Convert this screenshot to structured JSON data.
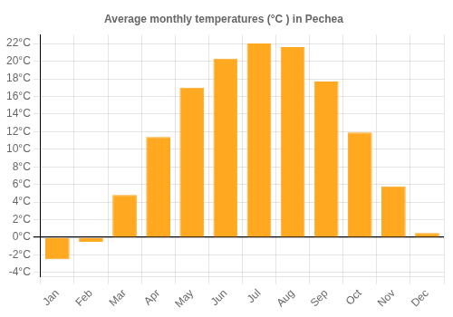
{
  "chart_data": {
    "type": "bar",
    "title": "Average monthly temperatures (°C ) in Pechea",
    "categories": [
      "Jan",
      "Feb",
      "Mar",
      "Apr",
      "May",
      "Jun",
      "Jul",
      "Aug",
      "Sep",
      "Oct",
      "Nov",
      "Dec"
    ],
    "values": [
      -2.5,
      -0.5,
      4.8,
      11.4,
      17.0,
      20.3,
      22.0,
      21.6,
      17.7,
      11.9,
      5.8,
      0.5
    ],
    "color": "#FFA820",
    "ylim": [
      -4.5,
      23
    ],
    "yticks": [
      {
        "value": -4,
        "label": "-4°C"
      },
      {
        "value": -2,
        "label": "-2°C"
      },
      {
        "value": 0,
        "label": "0°C"
      },
      {
        "value": 2,
        "label": "2°C"
      },
      {
        "value": 4,
        "label": "4°C"
      },
      {
        "value": 6,
        "label": "6°C"
      },
      {
        "value": 8,
        "label": "8°C"
      },
      {
        "value": 10,
        "label": "10°C"
      },
      {
        "value": 12,
        "label": "12°C"
      },
      {
        "value": 14,
        "label": "14°C"
      },
      {
        "value": 16,
        "label": "16°C"
      },
      {
        "value": 18,
        "label": "18°C"
      },
      {
        "value": 20,
        "label": "20°C"
      },
      {
        "value": 22,
        "label": "22°C"
      }
    ],
    "grid": true
  }
}
